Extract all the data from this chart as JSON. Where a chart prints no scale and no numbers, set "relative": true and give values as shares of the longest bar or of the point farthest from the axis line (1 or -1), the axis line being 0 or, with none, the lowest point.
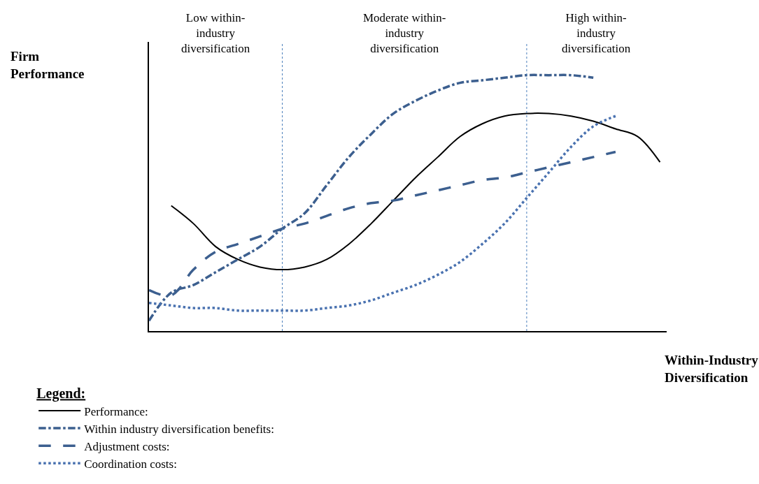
{
  "chart_data": {
    "type": "line",
    "relative": true,
    "categories": [
      null,
      null,
      null,
      null,
      null,
      null,
      null,
      null,
      null,
      null,
      null,
      null,
      null,
      null,
      null,
      null,
      null,
      null,
      null,
      null,
      null,
      null,
      null,
      null
    ],
    "xlabel": "Within-Industry\nDiversification",
    "ylabel": "Firm\nPerformance",
    "legend_title": "Legend:",
    "annotations": [
      "Low within-\nindustry\ndiversification",
      "Moderate within-\nindustry\ndiversification",
      "High within-\nindustry\ndiversification"
    ],
    "series": [
      {
        "name": "Performance:",
        "color": "#000000",
        "line_style": "solid",
        "values": [
          null,
          0.49,
          0.42,
          0.33,
          0.28,
          0.25,
          0.24,
          0.25,
          0.28,
          0.34,
          0.42,
          0.51,
          0.6,
          0.68,
          0.76,
          0.81,
          0.84,
          0.85,
          0.85,
          0.84,
          0.82,
          0.79,
          0.76,
          0.66
        ]
      },
      {
        "name": "Within industry diversification benefits:",
        "color": "#3c5f8f",
        "line_style": "dashdot",
        "values": [
          0.04,
          0.15,
          0.18,
          0.23,
          0.28,
          0.33,
          0.4,
          0.46,
          0.57,
          0.68,
          0.77,
          0.85,
          0.9,
          0.94,
          0.97,
          0.98,
          0.99,
          1.0,
          1.0,
          1.0,
          0.99,
          null,
          null,
          null
        ]
      },
      {
        "name": "Adjustment costs:",
        "color": "#3c5f8f",
        "line_style": "dashed",
        "values": [
          0.16,
          0.14,
          0.24,
          0.31,
          0.34,
          0.37,
          0.4,
          0.42,
          0.45,
          0.48,
          0.5,
          0.51,
          0.53,
          0.55,
          0.57,
          0.59,
          0.6,
          0.62,
          0.64,
          0.66,
          0.68,
          0.7,
          null,
          null
        ]
      },
      {
        "name": "Coordination costs:",
        "color": "#4a72b0",
        "line_style": "dotted",
        "values": [
          0.11,
          0.1,
          0.09,
          0.09,
          0.08,
          0.08,
          0.08,
          0.08,
          0.09,
          0.1,
          0.12,
          0.15,
          0.18,
          0.22,
          0.27,
          0.34,
          0.42,
          0.52,
          0.62,
          0.72,
          0.8,
          0.84,
          null,
          null
        ]
      }
    ],
    "legend": "bottom left"
  }
}
